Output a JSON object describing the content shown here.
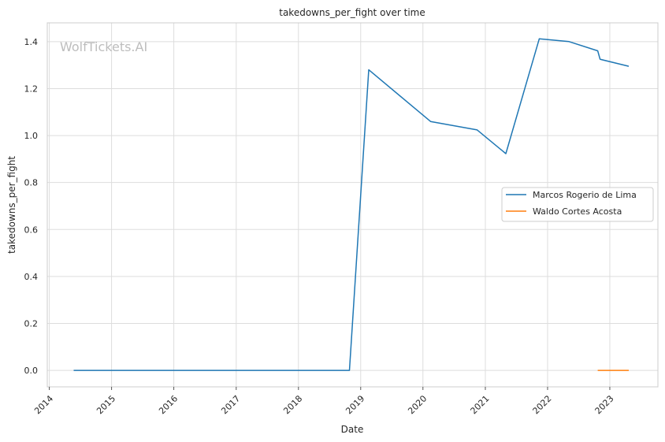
{
  "chart_data": {
    "type": "line",
    "title": "takedowns_per_fight over time",
    "xlabel": "Date",
    "ylabel": "takedowns_per_fight",
    "watermark": "WolfTickets.AI",
    "grid": true,
    "legend_position": "center-right",
    "xlim": [
      "2013-12-20",
      "2023-10-10"
    ],
    "ylim": [
      -0.07,
      1.48
    ],
    "x_ticks": [
      "2014",
      "2015",
      "2016",
      "2017",
      "2018",
      "2019",
      "2020",
      "2021",
      "2022",
      "2023"
    ],
    "y_ticks": [
      "0.0",
      "0.2",
      "0.4",
      "0.6",
      "0.8",
      "1.0",
      "1.2",
      "1.4"
    ],
    "series": [
      {
        "name": "Marcos Rogerio de Lima",
        "color": "#1f77b4",
        "points": [
          {
            "x": "2014-05-24",
            "y": 0.0
          },
          {
            "x": "2018-10-27",
            "y": 0.0
          },
          {
            "x": "2019-02-17",
            "y": 1.28
          },
          {
            "x": "2020-02-15",
            "y": 1.06
          },
          {
            "x": "2020-11-14",
            "y": 1.024
          },
          {
            "x": "2021-05-01",
            "y": 0.923
          },
          {
            "x": "2021-11-13",
            "y": 1.412
          },
          {
            "x": "2022-05-07",
            "y": 1.4
          },
          {
            "x": "2022-10-22",
            "y": 1.361
          },
          {
            "x": "2022-11-05",
            "y": 1.325
          },
          {
            "x": "2023-04-22",
            "y": 1.295
          }
        ]
      },
      {
        "name": "Waldo Cortes Acosta",
        "color": "#ff7f0e",
        "points": [
          {
            "x": "2022-10-22",
            "y": 0.0
          },
          {
            "x": "2023-04-22",
            "y": 0.0
          }
        ]
      }
    ]
  }
}
